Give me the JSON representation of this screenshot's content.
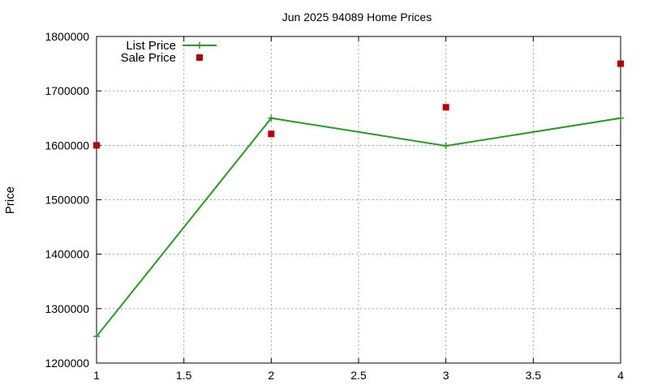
{
  "chart_data": {
    "type": "line",
    "title": "Jun 2025 94089 Home Prices",
    "xlabel": "",
    "ylabel": "Price",
    "xlim": [
      1,
      4
    ],
    "ylim": [
      1200000,
      1800000
    ],
    "x_ticks": [
      "1",
      "1.5",
      "2",
      "2.5",
      "3",
      "3.5",
      "4"
    ],
    "y_ticks": [
      "1200000",
      "1300000",
      "1400000",
      "1500000",
      "1600000",
      "1700000",
      "1800000"
    ],
    "grid": true,
    "legend_position": "top-left",
    "series": [
      {
        "name": "List Price",
        "style": "line-points",
        "marker": "plus",
        "color": "#1fa01f",
        "x": [
          1,
          2,
          3,
          4
        ],
        "y": [
          1249000,
          1650000,
          1599000,
          1650000
        ]
      },
      {
        "name": "Sale Price",
        "style": "points",
        "marker": "square",
        "color": "#c00000",
        "x": [
          1,
          2,
          3,
          4
        ],
        "y": [
          1600000,
          1621000,
          1670000,
          1750000
        ]
      }
    ]
  }
}
